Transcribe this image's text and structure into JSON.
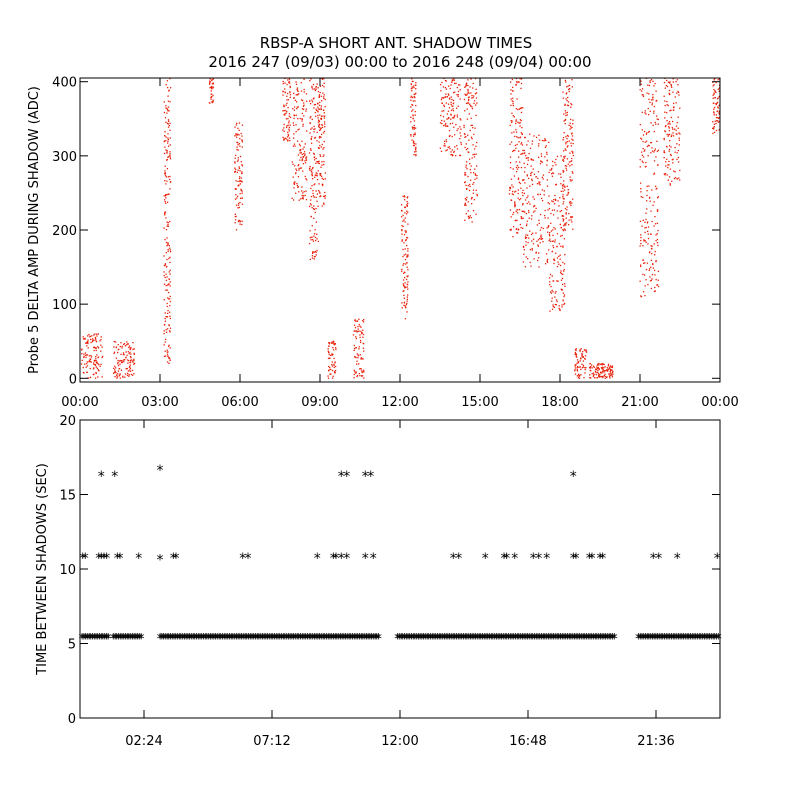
{
  "title_line1": "RBSP-A SHORT ANT. SHADOW TIMES",
  "title_line2": "2016 247 (09/03) 00:00 to 2016 248 (09/04) 00:00",
  "colors": {
    "shadow_points": "#e8200a",
    "interval_markers": "#000000",
    "axes": "#000000"
  },
  "chart_data": [
    {
      "type": "scatter",
      "ylabel": "Probe 5 DELTA AMP DURING SHADOW (ADC)",
      "xlim": [
        "00:00",
        "24:00"
      ],
      "ylim": [
        -5,
        405
      ],
      "yticks": [
        0,
        100,
        200,
        300,
        400
      ],
      "xtick_labels": [
        "00:00",
        "03:00",
        "06:00",
        "09:00",
        "12:00",
        "15:00",
        "18:00",
        "21:00",
        "00:00"
      ],
      "marker_color": "#e8200a",
      "clusters": [
        {
          "x": [
            0.05,
            0.85
          ],
          "y": [
            0,
            60
          ]
        },
        {
          "x": [
            1.25,
            2.05
          ],
          "y": [
            0,
            50
          ]
        },
        {
          "x": [
            3.15,
            3.4
          ],
          "y": [
            20,
            405
          ]
        },
        {
          "x": [
            4.85,
            5.0
          ],
          "y": [
            370,
            405
          ]
        },
        {
          "x": [
            5.8,
            6.1
          ],
          "y": [
            200,
            350
          ]
        },
        {
          "x": [
            7.6,
            7.9
          ],
          "y": [
            320,
            405
          ]
        },
        {
          "x": [
            7.95,
            8.5
          ],
          "y": [
            240,
            405
          ]
        },
        {
          "x": [
            8.6,
            8.95
          ],
          "y": [
            160,
            405
          ]
        },
        {
          "x": [
            8.95,
            9.2
          ],
          "y": [
            230,
            405
          ]
        },
        {
          "x": [
            9.3,
            9.6
          ],
          "y": [
            0,
            50
          ]
        },
        {
          "x": [
            10.25,
            10.65
          ],
          "y": [
            0,
            80
          ]
        },
        {
          "x": [
            12.05,
            12.3
          ],
          "y": [
            80,
            250
          ]
        },
        {
          "x": [
            12.4,
            12.6
          ],
          "y": [
            300,
            405
          ]
        },
        {
          "x": [
            13.5,
            14.3
          ],
          "y": [
            300,
            405
          ]
        },
        {
          "x": [
            14.4,
            14.9
          ],
          "y": [
            210,
            405
          ]
        },
        {
          "x": [
            16.1,
            16.6
          ],
          "y": [
            190,
            405
          ]
        },
        {
          "x": [
            16.6,
            17.6
          ],
          "y": [
            150,
            330
          ]
        },
        {
          "x": [
            17.6,
            18.2
          ],
          "y": [
            90,
            300
          ]
        },
        {
          "x": [
            18.1,
            18.5
          ],
          "y": [
            200,
            405
          ]
        },
        {
          "x": [
            18.55,
            19.0
          ],
          "y": [
            0,
            40
          ]
        },
        {
          "x": [
            19.1,
            20.0
          ],
          "y": [
            0,
            20
          ]
        },
        {
          "x": [
            21.0,
            21.7
          ],
          "y": [
            110,
            405
          ]
        },
        {
          "x": [
            21.9,
            22.5
          ],
          "y": [
            260,
            405
          ]
        },
        {
          "x": [
            23.7,
            24.0
          ],
          "y": [
            330,
            405
          ]
        }
      ]
    },
    {
      "type": "scatter",
      "ylabel": "TIME BETWEEN SHADOWS (SEC)",
      "xlim": [
        "00:00",
        "24:00"
      ],
      "ylim": [
        0,
        20
      ],
      "yticks": [
        0,
        5,
        10,
        15,
        20
      ],
      "xtick_labels": [
        "02:24",
        "07:12",
        "12:00",
        "16:48",
        "21:36"
      ],
      "marker": "*",
      "marker_color": "#000000",
      "base_level_sec": 5.4,
      "base_gaps": [
        [
          1.1,
          1.2
        ],
        [
          2.3,
          3.0
        ],
        [
          11.2,
          11.9
        ],
        [
          20.1,
          20.9
        ]
      ],
      "points": [
        {
          "x": 0.1,
          "y": 10.8
        },
        {
          "x": 0.2,
          "y": 10.8
        },
        {
          "x": 0.7,
          "y": 10.8
        },
        {
          "x": 0.8,
          "y": 10.8
        },
        {
          "x": 0.9,
          "y": 10.8
        },
        {
          "x": 1.0,
          "y": 10.8
        },
        {
          "x": 1.4,
          "y": 10.8
        },
        {
          "x": 1.5,
          "y": 10.8
        },
        {
          "x": 2.2,
          "y": 10.8
        },
        {
          "x": 3.0,
          "y": 10.7
        },
        {
          "x": 3.5,
          "y": 10.8
        },
        {
          "x": 3.6,
          "y": 10.8
        },
        {
          "x": 6.1,
          "y": 10.8
        },
        {
          "x": 6.3,
          "y": 10.8
        },
        {
          "x": 8.9,
          "y": 10.8
        },
        {
          "x": 9.5,
          "y": 10.8
        },
        {
          "x": 9.6,
          "y": 10.8
        },
        {
          "x": 9.8,
          "y": 10.8
        },
        {
          "x": 10.0,
          "y": 10.8
        },
        {
          "x": 10.7,
          "y": 10.8
        },
        {
          "x": 11.0,
          "y": 10.8
        },
        {
          "x": 14.0,
          "y": 10.8
        },
        {
          "x": 14.2,
          "y": 10.8
        },
        {
          "x": 15.2,
          "y": 10.8
        },
        {
          "x": 15.9,
          "y": 10.8
        },
        {
          "x": 16.0,
          "y": 10.8
        },
        {
          "x": 16.3,
          "y": 10.8
        },
        {
          "x": 17.0,
          "y": 10.8
        },
        {
          "x": 17.2,
          "y": 10.8
        },
        {
          "x": 17.5,
          "y": 10.8
        },
        {
          "x": 18.5,
          "y": 10.8
        },
        {
          "x": 18.6,
          "y": 10.8
        },
        {
          "x": 19.1,
          "y": 10.8
        },
        {
          "x": 19.2,
          "y": 10.8
        },
        {
          "x": 19.5,
          "y": 10.8
        },
        {
          "x": 19.6,
          "y": 10.8
        },
        {
          "x": 21.5,
          "y": 10.8
        },
        {
          "x": 21.7,
          "y": 10.8
        },
        {
          "x": 22.4,
          "y": 10.8
        },
        {
          "x": 23.9,
          "y": 10.8
        },
        {
          "x": 0.8,
          "y": 16.3
        },
        {
          "x": 1.3,
          "y": 16.3
        },
        {
          "x": 3.0,
          "y": 16.7
        },
        {
          "x": 9.8,
          "y": 16.3
        },
        {
          "x": 10.0,
          "y": 16.3
        },
        {
          "x": 10.7,
          "y": 16.3
        },
        {
          "x": 10.9,
          "y": 16.3
        },
        {
          "x": 18.5,
          "y": 16.3
        }
      ]
    }
  ]
}
